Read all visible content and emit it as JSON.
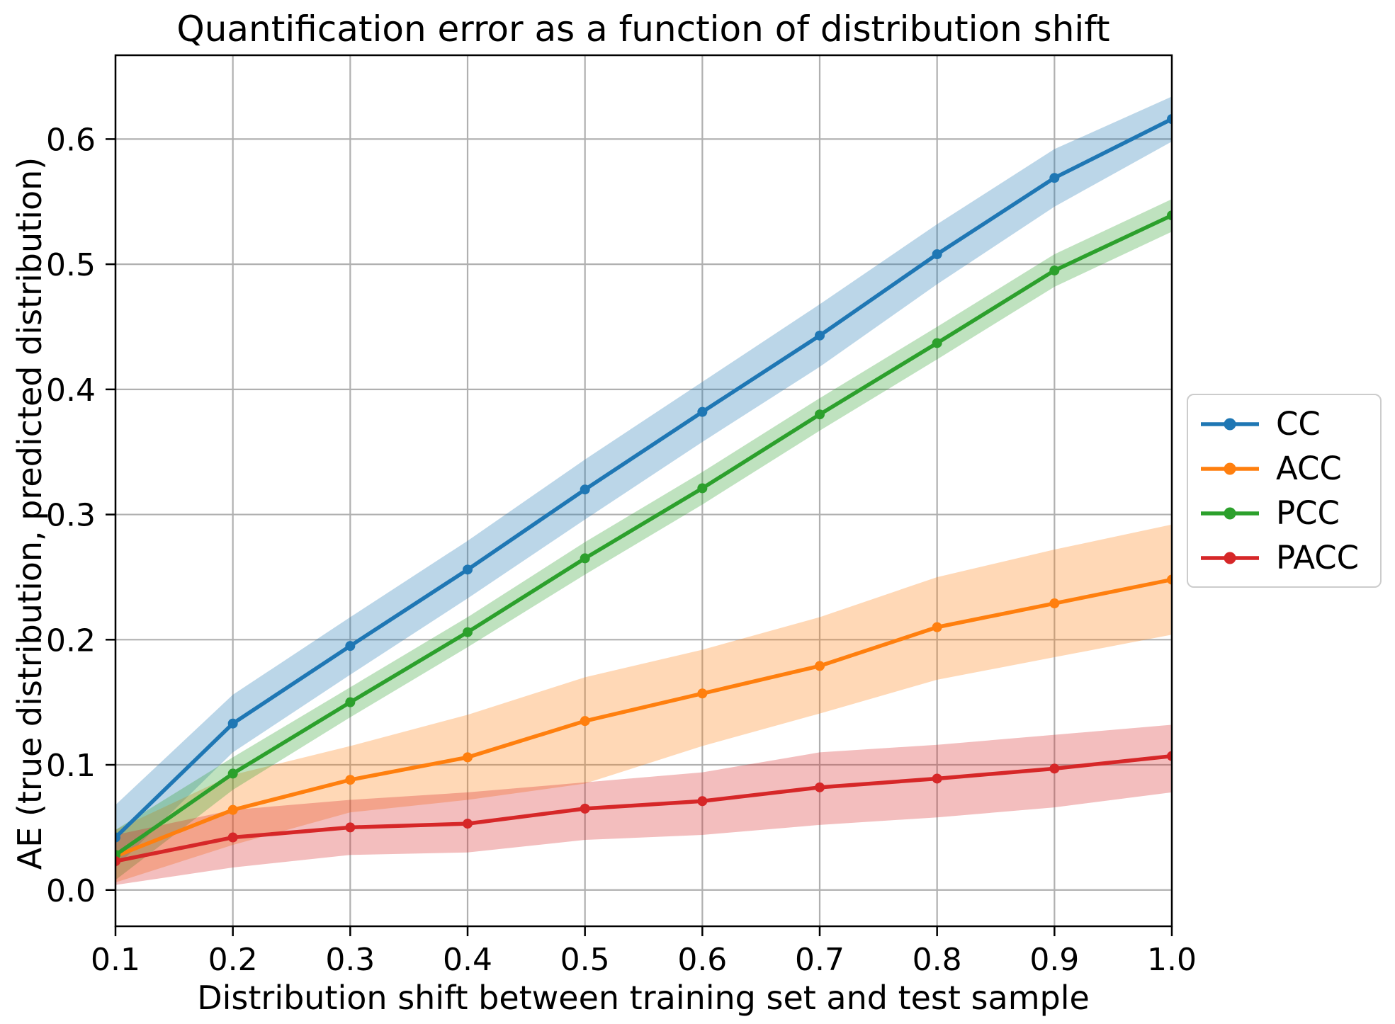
{
  "figure": {
    "title": "Quantification error as a function of distribution shift",
    "x_axis_label": "Distribution shift between training set and test sample",
    "y_axis_label": "AE (true distribution, predicted distribution)"
  },
  "chart_data": {
    "type": "line",
    "title": "Quantification error as a function of distribution shift",
    "xlabel": "Distribution shift between training set and test sample",
    "ylabel": "AE (true distribution, predicted distribution)",
    "x": [
      0.1,
      0.2,
      0.3,
      0.4,
      0.5,
      0.6,
      0.7,
      0.8,
      0.9,
      1.0
    ],
    "xlim": [
      0.1,
      1.0
    ],
    "ylim": [
      -0.029,
      0.667
    ],
    "xticks": [
      0.1,
      0.2,
      0.3,
      0.4,
      0.5,
      0.6,
      0.7,
      0.8,
      0.9,
      1.0
    ],
    "yticks": [
      0.0,
      0.1,
      0.2,
      0.3,
      0.4,
      0.5,
      0.6
    ],
    "grid": true,
    "grid_color": "#b0b0b0",
    "band_opacity": 0.3,
    "marker": "circle",
    "legend": {
      "position": "right-outside",
      "labels": [
        "CC",
        "ACC",
        "PCC",
        "PACC"
      ]
    },
    "series": [
      {
        "name": "CC",
        "color": "#1f77b4",
        "values": [
          0.042,
          0.133,
          0.195,
          0.256,
          0.32,
          0.382,
          0.443,
          0.508,
          0.569,
          0.616
        ],
        "band_lower": [
          0.018,
          0.11,
          0.172,
          0.233,
          0.296,
          0.358,
          0.418,
          0.484,
          0.546,
          0.598
        ],
        "band_upper": [
          0.068,
          0.156,
          0.218,
          0.279,
          0.344,
          0.406,
          0.468,
          0.532,
          0.592,
          0.634
        ]
      },
      {
        "name": "ACC",
        "color": "#ff7f0e",
        "values": [
          0.027,
          0.064,
          0.088,
          0.106,
          0.135,
          0.157,
          0.179,
          0.21,
          0.229,
          0.248
        ],
        "band_lower": [
          0.006,
          0.036,
          0.062,
          0.072,
          0.085,
          0.115,
          0.141,
          0.168,
          0.186,
          0.204
        ],
        "band_upper": [
          0.048,
          0.092,
          0.115,
          0.14,
          0.17,
          0.192,
          0.218,
          0.25,
          0.272,
          0.292
        ]
      },
      {
        "name": "PCC",
        "color": "#2ca02c",
        "values": [
          0.028,
          0.093,
          0.15,
          0.206,
          0.265,
          0.321,
          0.38,
          0.437,
          0.495,
          0.539
        ],
        "band_lower": [
          0.008,
          0.08,
          0.138,
          0.194,
          0.252,
          0.308,
          0.367,
          0.424,
          0.482,
          0.526
        ],
        "band_upper": [
          0.048,
          0.106,
          0.162,
          0.218,
          0.278,
          0.334,
          0.393,
          0.45,
          0.508,
          0.552
        ]
      },
      {
        "name": "PACC",
        "color": "#d62728",
        "values": [
          0.023,
          0.042,
          0.05,
          0.053,
          0.065,
          0.071,
          0.082,
          0.089,
          0.097,
          0.107
        ],
        "band_lower": [
          0.004,
          0.018,
          0.028,
          0.03,
          0.04,
          0.044,
          0.052,
          0.058,
          0.066,
          0.078
        ],
        "band_upper": [
          0.044,
          0.064,
          0.072,
          0.078,
          0.086,
          0.094,
          0.11,
          0.116,
          0.124,
          0.132
        ]
      }
    ]
  }
}
